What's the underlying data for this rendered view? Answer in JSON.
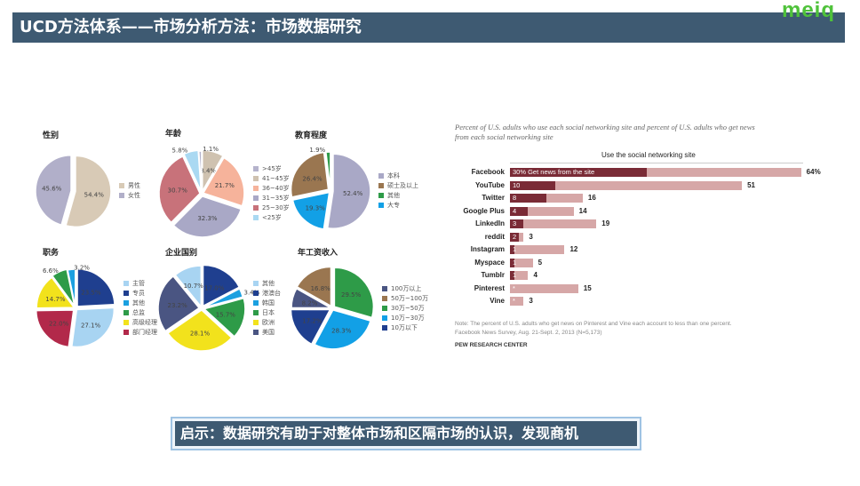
{
  "header": {
    "title": "UCD方法体系——市场分析方法：市场数据研究",
    "logo": "meiq"
  },
  "pies": [
    {
      "title": "性别",
      "slices": [
        {
          "label": "男性",
          "value": 54.4,
          "color": "#d8cab6"
        },
        {
          "label": "女性",
          "value": 45.6,
          "color": "#b1afc9"
        }
      ],
      "legend_order": [
        0,
        1
      ]
    },
    {
      "title": "年龄",
      "slices": [
        {
          "label": "41~45岁",
          "value": 8.4,
          "color": "#cfc2b0"
        },
        {
          "label": "36~40岁",
          "value": 21.7,
          "color": "#f6b39b"
        },
        {
          "label": "31~35岁",
          "value": 32.3,
          "color": "#a9a8c6"
        },
        {
          "label": "25~30岁",
          "value": 30.7,
          "color": "#c8727a"
        },
        {
          "label": "<25岁",
          "value": 5.8,
          "color": "#aad9f2"
        },
        {
          "label": ">45岁",
          "value": 1.1,
          "color": "#b5b3cc"
        }
      ],
      "legend_order": [
        5,
        0,
        1,
        2,
        3,
        4
      ]
    },
    {
      "title": "教育程度",
      "slices": [
        {
          "label": "本科",
          "value": 52.4,
          "color": "#a9a8c6"
        },
        {
          "label": "大专",
          "value": 19.3,
          "color": "#12a0e6"
        },
        {
          "label": "硕士及以上",
          "value": 26.4,
          "color": "#9a7650"
        },
        {
          "label": "其他",
          "value": 1.9,
          "color": "#2e9b48"
        }
      ],
      "legend_order": [
        0,
        2,
        3,
        1
      ]
    },
    {
      "title": "职务",
      "slices": [
        {
          "label": "专员",
          "value": 23.5,
          "color": "#1f3f8f"
        },
        {
          "label": "主管",
          "value": 27.1,
          "color": "#a8d4f2"
        },
        {
          "label": "部门经理",
          "value": 22.0,
          "color": "#b2294a"
        },
        {
          "label": "高级经理",
          "value": 14.7,
          "color": "#f2e21c"
        },
        {
          "label": "总监",
          "value": 6.6,
          "color": "#2e9b48"
        },
        {
          "label": "其他",
          "value": 3.2,
          "color": "#1ba0e0"
        }
      ],
      "legend_order": [
        1,
        0,
        5,
        4,
        3,
        2
      ]
    },
    {
      "title": "企业国别",
      "slices": [
        {
          "label": "港澳台",
          "value": 17.0,
          "color": "#1f3f8f"
        },
        {
          "label": "韩国",
          "value": 3.4,
          "color": "#1ba0e0"
        },
        {
          "label": "日本",
          "value": 15.7,
          "color": "#2e9b48"
        },
        {
          "label": "欧洲",
          "value": 28.1,
          "color": "#f2e21c"
        },
        {
          "label": "美国",
          "value": 23.2,
          "color": "#4a5582"
        },
        {
          "label": "其他",
          "value": 10.7,
          "color": "#a8d4f2"
        }
      ],
      "legend_order": [
        5,
        0,
        1,
        2,
        3,
        4
      ]
    },
    {
      "title": "年工资收入",
      "slices": [
        {
          "label": "30万~50万",
          "value": 29.5,
          "color": "#2e9b48"
        },
        {
          "label": "10万~30万",
          "value": 28.3,
          "color": "#12a0e6"
        },
        {
          "label": "10万以下",
          "value": 17.2,
          "color": "#1f3f8f"
        },
        {
          "label": "100万以上",
          "value": 8.2,
          "color": "#4a5582"
        },
        {
          "label": "50万~100万",
          "value": 16.8,
          "color": "#9a7650"
        }
      ],
      "legend_order": [
        3,
        4,
        0,
        1,
        2
      ]
    }
  ],
  "bars": {
    "subtitle": "Percent of U.S. adults who use each social networking site and percent of U.S. adults who get news from each social networking site",
    "header": "Use the social networking site",
    "news_label": "30%  Get news from the site",
    "rows": [
      {
        "site": "Facebook",
        "use": 64,
        "use_label": "64%",
        "news": 30,
        "news_label": ""
      },
      {
        "site": "YouTube",
        "use": 51,
        "use_label": "51",
        "news": 10,
        "news_label": "10"
      },
      {
        "site": "Twitter",
        "use": 16,
        "use_label": "16",
        "news": 8,
        "news_label": "8"
      },
      {
        "site": "Google Plus",
        "use": 14,
        "use_label": "14",
        "news": 4,
        "news_label": "4"
      },
      {
        "site": "LinkedIn",
        "use": 19,
        "use_label": "19",
        "news": 3,
        "news_label": "3"
      },
      {
        "site": "reddit",
        "use": 3,
        "use_label": "3",
        "news": 2,
        "news_label": "2"
      },
      {
        "site": "Instagram",
        "use": 12,
        "use_label": "12",
        "news": 1,
        "news_label": "1"
      },
      {
        "site": "Myspace",
        "use": 5,
        "use_label": "5",
        "news": 1,
        "news_label": "1"
      },
      {
        "site": "Tumblr",
        "use": 4,
        "use_label": "4",
        "news": 1,
        "news_label": "1"
      },
      {
        "site": "Pinterest",
        "use": 15,
        "use_label": "15",
        "news": 0,
        "news_label": "*"
      },
      {
        "site": "Vine",
        "use": 3,
        "use_label": "3",
        "news": 0,
        "news_label": "*"
      }
    ],
    "note": "Note: The percent of U.S. adults who get news on Pinterest and Vine each account to less than one percent.",
    "source": "Facebook News Survey, Aug. 21-Sept. 2, 2013 (N=5,173)",
    "org": "PEW RESEARCH CENTER"
  },
  "callout": "启示：数据研究有助于对整体市场和区隔市场的认识，发现商机"
}
